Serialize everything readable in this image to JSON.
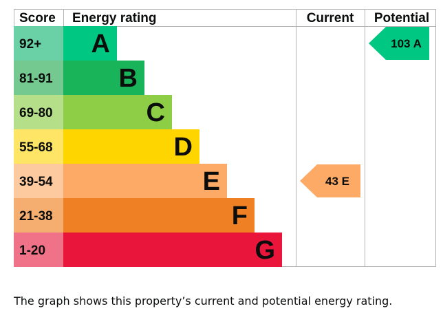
{
  "chart_data": {
    "type": "table",
    "headers": {
      "score": "Score",
      "rating": "Energy rating",
      "current": "Current",
      "potential": "Potential"
    },
    "bands": [
      {
        "letter": "A",
        "range": "92+",
        "color": "#00c781",
        "score_color": "#6ad0a5"
      },
      {
        "letter": "B",
        "range": "81-91",
        "color": "#19b459",
        "score_color": "#73c98f"
      },
      {
        "letter": "C",
        "range": "69-80",
        "color": "#8dce46",
        "score_color": "#b6df8a"
      },
      {
        "letter": "D",
        "range": "55-68",
        "color": "#ffd500",
        "score_color": "#ffe566"
      },
      {
        "letter": "E",
        "range": "39-54",
        "color": "#fcaa65",
        "score_color": "#fdc99e"
      },
      {
        "letter": "F",
        "range": "21-38",
        "color": "#ef8023",
        "score_color": "#f5ad70"
      },
      {
        "letter": "G",
        "range": "1-20",
        "color": "#e9153b",
        "score_color": "#f07288"
      }
    ],
    "current": {
      "value": 43,
      "band": "E",
      "label": "43 E",
      "color": "#fcaa65"
    },
    "potential": {
      "value": 103,
      "band": "A",
      "label": "103 A",
      "color": "#00c781"
    }
  },
  "caption": "The graph shows this property’s current and potential energy rating."
}
